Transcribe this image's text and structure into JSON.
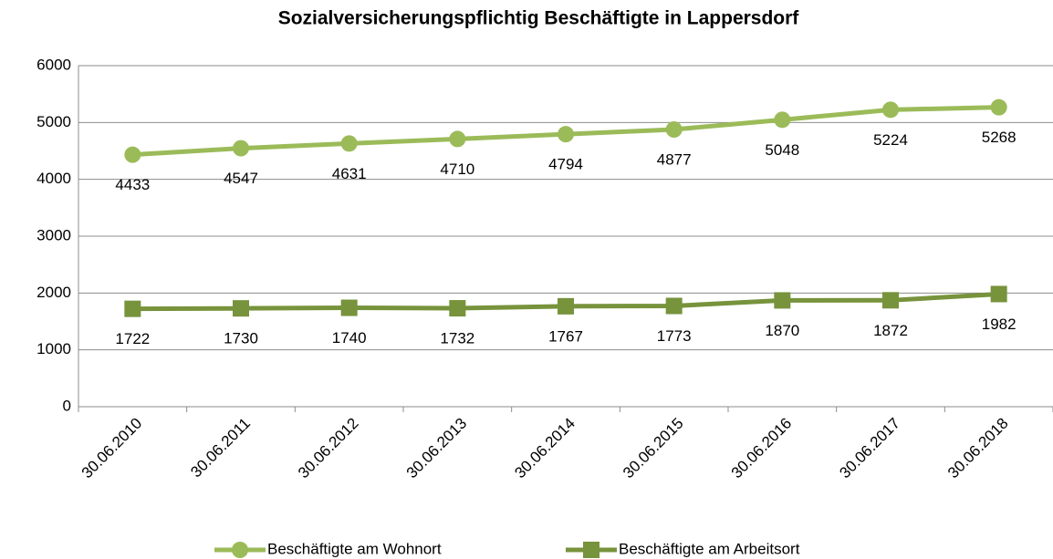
{
  "chart_data": {
    "type": "line",
    "title": "Sozialversicherungspflichtig Beschäftigte in Lappersdorf",
    "categories": [
      "30.06.2010",
      "30.06.2011",
      "30.06.2012",
      "30.06.2013",
      "30.06.2014",
      "30.06.2015",
      "30.06.2016",
      "30.06.2017",
      "30.06.2018"
    ],
    "series": [
      {
        "name": "Beschäftigte am Wohnort",
        "color": "#9bbb59",
        "marker": "circle",
        "values": [
          4433,
          4547,
          4631,
          4710,
          4794,
          4877,
          5048,
          5224,
          5268
        ]
      },
      {
        "name": "Beschäftigte am Arbeitsort",
        "color": "#77933c",
        "marker": "square",
        "values": [
          1722,
          1730,
          1740,
          1732,
          1767,
          1773,
          1870,
          1872,
          1982
        ]
      }
    ],
    "ylim": [
      0,
      6000
    ],
    "yticks": [
      0,
      1000,
      2000,
      3000,
      4000,
      5000,
      6000
    ],
    "grid": true,
    "legend": "bottom"
  }
}
